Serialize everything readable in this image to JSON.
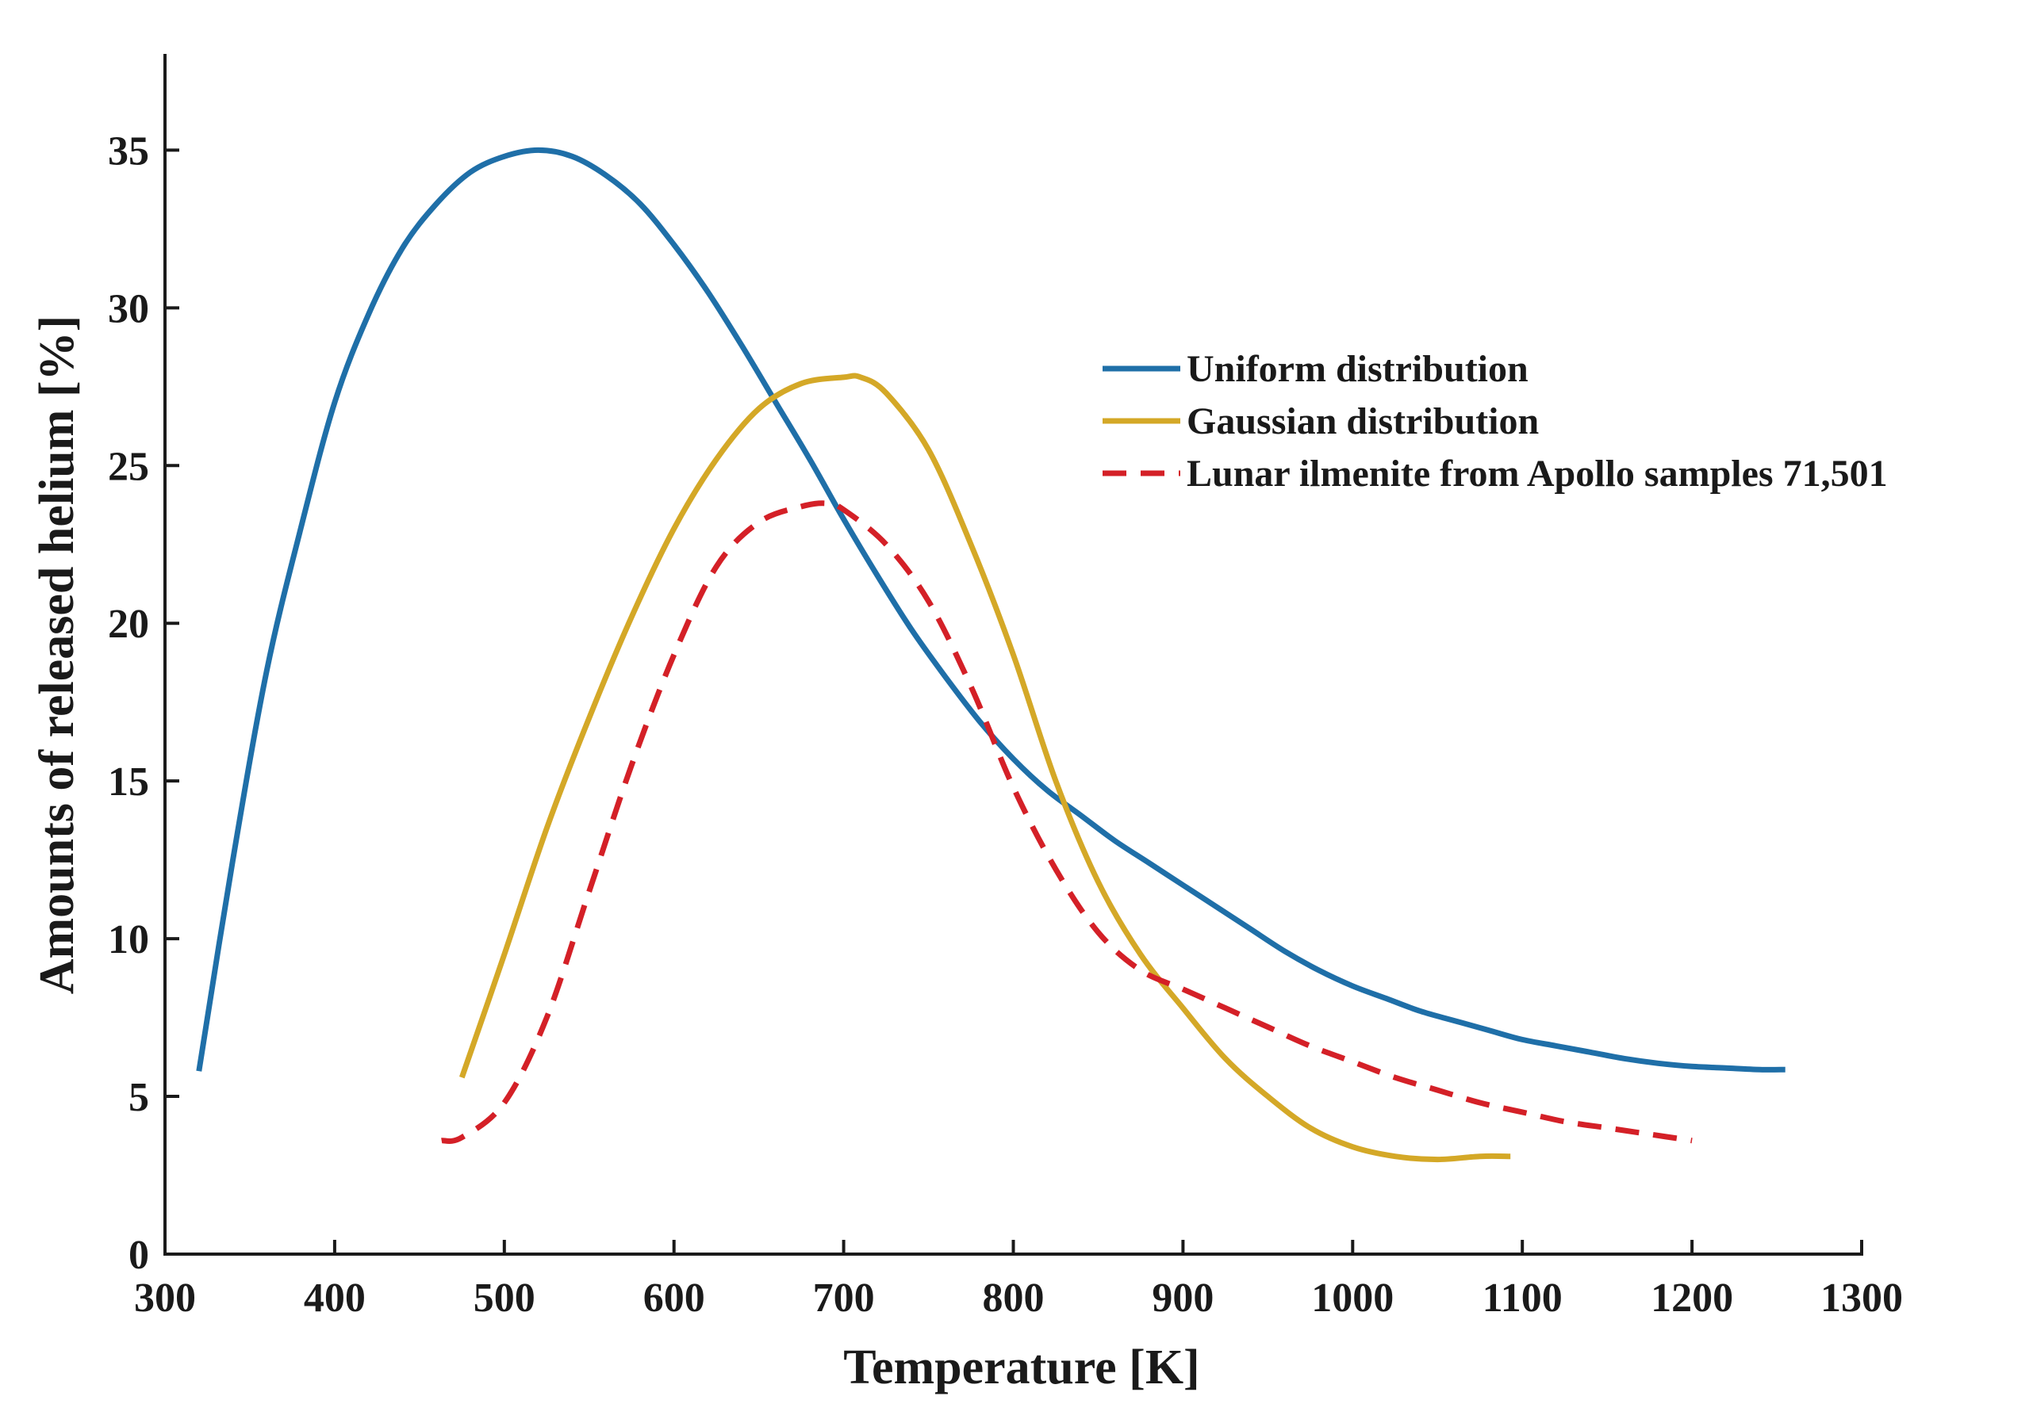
{
  "chart_data": {
    "type": "line",
    "title": "",
    "xlabel": "Temperature [K]",
    "ylabel": "Amounts of released helium [%]",
    "xlim": [
      300,
      1300
    ],
    "ylim": [
      0,
      38
    ],
    "xticks": [
      300,
      400,
      500,
      600,
      700,
      800,
      900,
      1000,
      1100,
      1200,
      1300
    ],
    "xtick_labels": [
      "300",
      "400",
      "500",
      "600",
      "700",
      "800",
      "900",
      "1000",
      "1100",
      "1200",
      "1300"
    ],
    "yticks": [
      0,
      5,
      10,
      15,
      20,
      25,
      30,
      35
    ],
    "ytick_labels": [
      "0",
      "5",
      "10",
      "15",
      "20",
      "25",
      "30",
      "35"
    ],
    "grid": false,
    "legend_position": "right",
    "series": [
      {
        "name": "Uniform distribution",
        "color": "#1f6fa8",
        "dash": "solid",
        "x": [
          320,
          340,
          360,
          380,
          400,
          420,
          440,
          460,
          480,
          500,
          520,
          540,
          560,
          580,
          600,
          620,
          640,
          660,
          680,
          700,
          720,
          740,
          760,
          780,
          800,
          820,
          840,
          860,
          880,
          900,
          920,
          940,
          960,
          980,
          1000,
          1020,
          1040,
          1060,
          1080,
          1100,
          1120,
          1140,
          1160,
          1180,
          1200,
          1220,
          1240,
          1255
        ],
        "values": [
          5.8,
          12.5,
          18.5,
          23.0,
          27.0,
          29.8,
          31.9,
          33.3,
          34.3,
          34.8,
          35.0,
          34.8,
          34.2,
          33.3,
          32.0,
          30.5,
          28.8,
          27.0,
          25.2,
          23.3,
          21.5,
          19.8,
          18.3,
          16.9,
          15.7,
          14.7,
          13.9,
          13.1,
          12.4,
          11.7,
          11.0,
          10.3,
          9.6,
          9.0,
          8.5,
          8.1,
          7.7,
          7.4,
          7.1,
          6.8,
          6.6,
          6.4,
          6.2,
          6.05,
          5.95,
          5.9,
          5.85,
          5.85
        ]
      },
      {
        "name": "Gaussian distribution",
        "color": "#d4a827",
        "dash": "solid",
        "x": [
          475,
          500,
          525,
          550,
          575,
          600,
          625,
          650,
          675,
          700,
          710,
          725,
          750,
          775,
          800,
          825,
          850,
          875,
          900,
          925,
          950,
          975,
          1000,
          1025,
          1050,
          1075,
          1093
        ],
        "values": [
          5.6,
          9.5,
          13.5,
          17.0,
          20.2,
          23.0,
          25.2,
          26.8,
          27.6,
          27.8,
          27.8,
          27.3,
          25.5,
          22.5,
          19.0,
          15.0,
          11.8,
          9.5,
          7.8,
          6.2,
          5.0,
          4.0,
          3.4,
          3.1,
          3.0,
          3.1,
          3.1
        ]
      },
      {
        "name": "Lunar ilmenite from Apollo samples 71,501",
        "color": "#d42027",
        "dash": "dashed",
        "x": [
          463,
          475,
          500,
          525,
          550,
          575,
          600,
          625,
          650,
          675,
          690,
          700,
          725,
          750,
          775,
          800,
          825,
          850,
          875,
          900,
          925,
          950,
          975,
          1000,
          1025,
          1050,
          1075,
          1100,
          1125,
          1150,
          1175,
          1200
        ],
        "values": [
          3.6,
          3.7,
          4.8,
          7.5,
          11.5,
          15.5,
          19.0,
          21.8,
          23.2,
          23.7,
          23.8,
          23.6,
          22.5,
          20.7,
          18.0,
          14.8,
          12.2,
          10.2,
          9.0,
          8.4,
          7.8,
          7.2,
          6.6,
          6.1,
          5.6,
          5.2,
          4.8,
          4.5,
          4.2,
          4.0,
          3.8,
          3.6
        ]
      }
    ]
  }
}
